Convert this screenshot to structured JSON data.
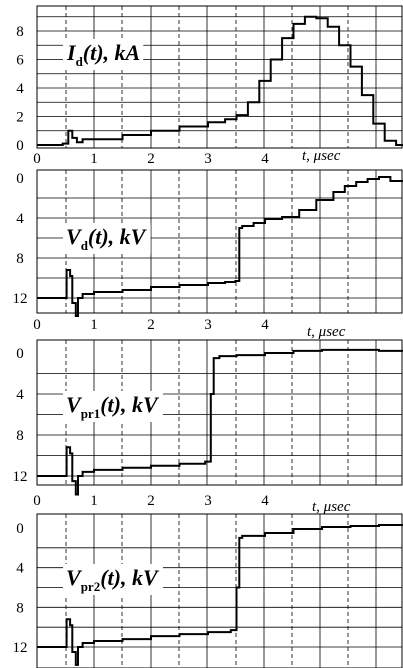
{
  "chart_data": [
    {
      "type": "line",
      "title": "I_d(t), kA",
      "title_main": "I",
      "title_sub": "d",
      "title_rest": "(t), kA",
      "xlabel": "t, μsec",
      "xlim": [
        0,
        6.5
      ],
      "ylim": [
        0,
        10
      ],
      "y_inverted": false,
      "x_ticks": [
        "0",
        "1",
        "2",
        "3",
        "4"
      ],
      "y_ticks": [
        "0",
        "2",
        "4",
        "6",
        "8"
      ],
      "grid": true,
      "x": [
        0,
        0.45,
        0.55,
        0.62,
        0.7,
        0.8,
        1.0,
        1.5,
        2.0,
        2.5,
        3.0,
        3.3,
        3.5,
        3.7,
        3.9,
        4.1,
        4.3,
        4.5,
        4.7,
        4.9,
        5.1,
        5.3,
        5.5,
        5.7,
        5.9,
        6.1,
        6.3,
        6.5
      ],
      "y": [
        0.0,
        0.1,
        1.0,
        0.5,
        0.2,
        0.4,
        0.4,
        0.7,
        1.0,
        1.3,
        1.6,
        1.8,
        2.1,
        3.0,
        4.5,
        6.0,
        7.5,
        8.5,
        9.0,
        8.9,
        8.3,
        7.0,
        5.5,
        3.5,
        1.5,
        0.3,
        0.0,
        0.3
      ]
    },
    {
      "type": "line",
      "title": "V_d(t), kV",
      "title_main": "V",
      "title_sub": "d",
      "title_rest": "(t), kV",
      "xlabel": "t, μsec",
      "xlim": [
        0,
        6.5
      ],
      "ylim": [
        0,
        13
      ],
      "y_inverted": true,
      "x_ticks": [
        "0",
        "1",
        "2",
        "3",
        "4"
      ],
      "y_ticks": [
        "0",
        "4",
        "8",
        "12"
      ],
      "grid": true,
      "x": [
        0,
        0.45,
        0.52,
        0.58,
        0.62,
        0.68,
        0.72,
        0.8,
        1.0,
        1.5,
        2.0,
        2.5,
        3.0,
        3.3,
        3.48,
        3.55,
        3.6,
        3.8,
        4.0,
        4.3,
        4.6,
        4.9,
        5.2,
        5.4,
        5.6,
        5.8,
        6.0,
        6.2,
        6.5
      ],
      "y": [
        12.0,
        12.0,
        9.2,
        9.8,
        12.5,
        13.8,
        12.0,
        11.6,
        11.4,
        11.2,
        10.9,
        10.7,
        10.5,
        10.4,
        10.3,
        5.0,
        4.8,
        4.5,
        4.1,
        3.9,
        3.2,
        2.2,
        1.4,
        0.8,
        0.4,
        0.1,
        -0.1,
        0.3,
        0.7
      ]
    },
    {
      "type": "line",
      "title": "V_pr1(t), kV",
      "title_main": "V",
      "title_sub": "pr1",
      "title_rest": "(t), kV",
      "xlabel": "t, μsec",
      "xlim": [
        0,
        6.5
      ],
      "ylim": [
        0,
        13
      ],
      "y_inverted": true,
      "x_ticks": [
        "0",
        "1",
        "2",
        "3",
        "4"
      ],
      "y_ticks": [
        "0",
        "4",
        "8",
        "12"
      ],
      "grid": true,
      "x": [
        0,
        0.45,
        0.52,
        0.58,
        0.62,
        0.68,
        0.72,
        0.8,
        1.0,
        1.5,
        2.0,
        2.5,
        2.95,
        3.05,
        3.1,
        3.2,
        3.5,
        4.0,
        4.5,
        5.0,
        5.5,
        6.0,
        6.5
      ],
      "y": [
        12.0,
        12.0,
        9.2,
        9.8,
        12.5,
        13.8,
        12.0,
        11.6,
        11.4,
        11.2,
        11.0,
        10.8,
        10.6,
        4.0,
        0.5,
        0.3,
        0.2,
        0.0,
        -0.2,
        -0.3,
        -0.3,
        -0.2,
        -0.2
      ]
    },
    {
      "type": "line",
      "title": "V_pr2(t), kV",
      "title_main": "V",
      "title_sub": "pr2",
      "title_rest": "(t), kV",
      "xlabel": "",
      "xlim": [
        0,
        6.5
      ],
      "ylim": [
        0,
        13
      ],
      "y_inverted": true,
      "x_ticks": [],
      "y_ticks": [
        "0",
        "4",
        "8",
        "12"
      ],
      "grid": true,
      "x": [
        0,
        0.45,
        0.52,
        0.58,
        0.62,
        0.68,
        0.72,
        0.8,
        1.0,
        1.5,
        2.0,
        2.5,
        3.0,
        3.4,
        3.5,
        3.55,
        3.6,
        4.0,
        4.5,
        5.0,
        5.5,
        6.0,
        6.5
      ],
      "y": [
        12.0,
        12.0,
        9.2,
        9.8,
        12.5,
        13.8,
        12.0,
        11.6,
        11.4,
        11.2,
        10.9,
        10.7,
        10.5,
        10.3,
        6.0,
        1.0,
        0.8,
        0.5,
        0.1,
        -0.1,
        -0.2,
        -0.3,
        -0.2
      ]
    }
  ]
}
